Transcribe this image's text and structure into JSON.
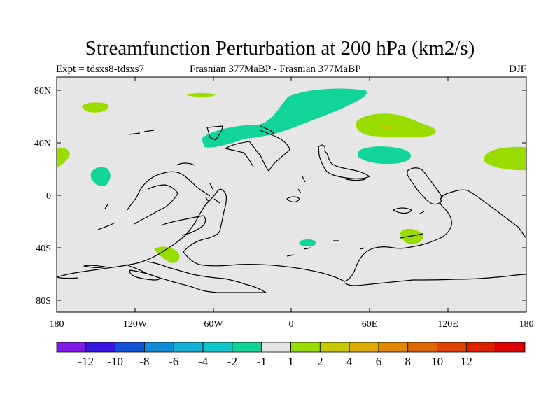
{
  "title": "Streamfunction Perturbation at 200 hPa (km2/s)",
  "subtitle_left": "Expt = tdsxs8-tdsxs7",
  "subtitle_center": "Frasnian 377MaBP - Frasnian 377MaBP",
  "subtitle_right": "DJF",
  "map": {
    "background_color": "#e6e6e6",
    "coastline_color": "#000000",
    "lat_ticks": [
      {
        "value": 80,
        "label": "80N"
      },
      {
        "value": 40,
        "label": "40N"
      },
      {
        "value": 0,
        "label": "0"
      },
      {
        "value": -40,
        "label": "40S"
      },
      {
        "value": -80,
        "label": "80S"
      }
    ],
    "lon_ticks": [
      {
        "value": -180,
        "label": "180"
      },
      {
        "value": -120,
        "label": "120W"
      },
      {
        "value": -60,
        "label": "60W"
      },
      {
        "value": 0,
        "label": "0"
      },
      {
        "value": 60,
        "label": "60E"
      },
      {
        "value": 120,
        "label": "120E"
      },
      {
        "value": 180,
        "label": "180"
      }
    ],
    "lon_range": [
      -180,
      180
    ],
    "lat_range": [
      -90,
      90
    ]
  },
  "colorbar": {
    "colors": [
      "#7f1ae6",
      "#3a14e0",
      "#1450d8",
      "#118ed8",
      "#13b2d6",
      "#10c8cc",
      "#10d49a",
      "#e6e6e6",
      "#99dd00",
      "#c8c800",
      "#dcaa00",
      "#e08800",
      "#e06600",
      "#e04400",
      "#dd2200",
      "#dd0000"
    ],
    "labels": [
      "-12",
      "-10",
      "-8",
      "-6",
      "-4",
      "-2",
      "-1",
      "1",
      "2",
      "4",
      "6",
      "8",
      "10",
      "12"
    ]
  }
}
